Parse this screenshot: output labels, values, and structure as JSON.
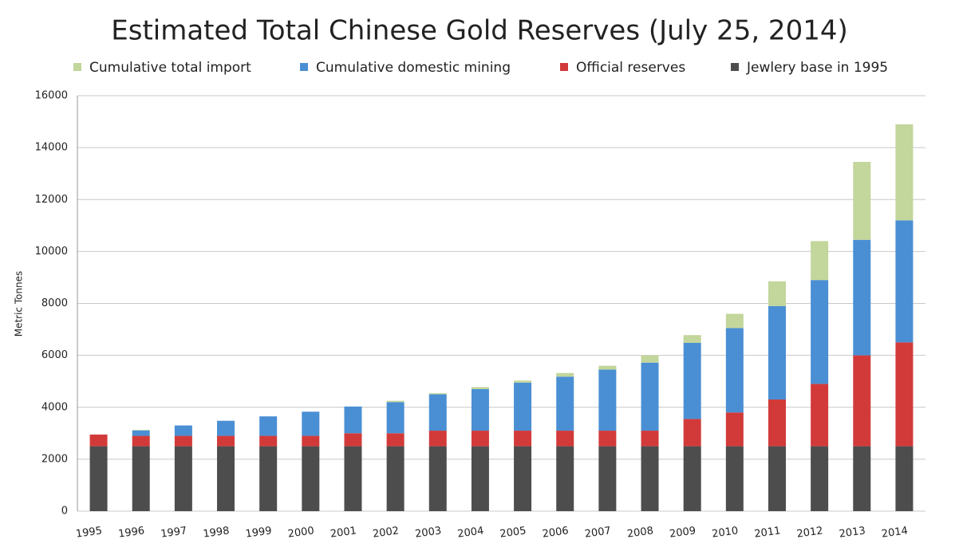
{
  "chart_data": {
    "type": "stacked_bar",
    "title": "Estimated Total Chinese Gold Reserves (July 25, 2014)",
    "y_label": "Metric Tonnes",
    "categories": [
      "1995",
      "1996",
      "1997",
      "1998",
      "1999",
      "2000",
      "2001",
      "2002",
      "2003",
      "2004",
      "2005",
      "2006",
      "2007",
      "2008",
      "2009",
      "2010",
      "2011",
      "2012",
      "2013",
      "2014"
    ],
    "series": [
      {
        "name": "Cumulative total import",
        "color": "#c3d69b",
        "values": [
          0,
          20,
          0,
          0,
          0,
          0,
          0,
          50,
          40,
          80,
          80,
          140,
          150,
          280,
          300,
          550,
          950,
          1500,
          3000,
          3700
        ]
      },
      {
        "name": "Cumulative domestic mining",
        "color": "#4a8fd4",
        "values": [
          0,
          210,
          400,
          580,
          750,
          930,
          1030,
          1200,
          1400,
          1600,
          1850,
          2080,
          2350,
          2620,
          2930,
          3250,
          3600,
          4000,
          4450,
          4700
        ]
      },
      {
        "name": "Official reserves",
        "color": "#d23a3a",
        "values": [
          450,
          400,
          400,
          400,
          400,
          400,
          500,
          500,
          600,
          600,
          600,
          600,
          600,
          600,
          1050,
          1300,
          1800,
          2400,
          3500,
          4000
        ]
      },
      {
        "name": "Jewlery base in 1995",
        "color": "#4d4d4d",
        "values": [
          2500,
          2500,
          2500,
          2500,
          2500,
          2500,
          2500,
          2500,
          2500,
          2500,
          2500,
          2500,
          2500,
          2500,
          2500,
          2500,
          2500,
          2500,
          2500,
          2500
        ]
      }
    ],
    "ylim": [
      0,
      16000
    ],
    "yticks": [
      0,
      2000,
      4000,
      6000,
      8000,
      10000,
      12000,
      14000,
      16000
    ],
    "grid": true
  }
}
